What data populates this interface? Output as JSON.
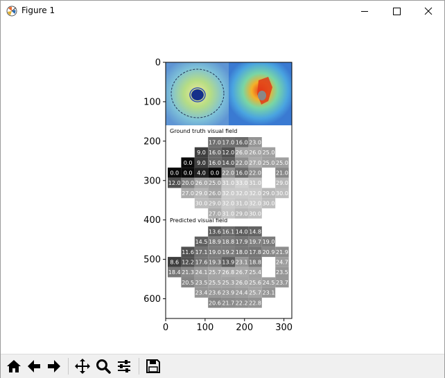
{
  "window": {
    "title": "Figure 1",
    "icon": "matplotlib-icon",
    "controls": [
      "minimize-icon",
      "maximize-icon",
      "close-icon"
    ]
  },
  "toolbar": {
    "buttons": [
      {
        "name": "home-button",
        "icon": "home-icon"
      },
      {
        "name": "back-button",
        "icon": "arrow-left-icon"
      },
      {
        "name": "forward-button",
        "icon": "arrow-right-icon"
      },
      {
        "name": "pan-button",
        "icon": "move-icon"
      },
      {
        "name": "zoom-button",
        "icon": "magnifier-icon"
      },
      {
        "name": "configure-subplots-button",
        "icon": "sliders-icon"
      },
      {
        "name": "save-button",
        "icon": "floppy-disk-icon"
      }
    ]
  },
  "figure": {
    "xlim": [
      0,
      320
    ],
    "ylim": [
      650,
      0
    ],
    "xticks": [
      "0",
      "100",
      "200",
      "300"
    ],
    "yticks": [
      "0",
      "100",
      "200",
      "300",
      "400",
      "500",
      "600"
    ],
    "xtick_values": [
      0,
      100,
      200,
      300
    ],
    "ytick_values": [
      0,
      100,
      200,
      300,
      400,
      500,
      600
    ],
    "title_gt": "Ground truth visual field",
    "title_pred": "Predicted visual field",
    "colors": {
      "spine": "#000000",
      "tick_text": "#000000",
      "cell_text": "#ffffff"
    }
  },
  "chart_data": [
    {
      "type": "heatmap",
      "title": "Ground truth visual field",
      "rows": [
        [
          null,
          null,
          null,
          17.0,
          17.0,
          16.0,
          23.0,
          null,
          null,
          null
        ],
        [
          null,
          null,
          9.0,
          16.0,
          12.0,
          26.0,
          26.0,
          25.0,
          null,
          null
        ],
        [
          null,
          0.0,
          9.0,
          16.0,
          14.0,
          22.0,
          27.0,
          25.0,
          25.0,
          null
        ],
        [
          0.0,
          0.0,
          4.0,
          0.0,
          22.0,
          16.0,
          22.0,
          null,
          21.0,
          null
        ],
        [
          12.0,
          20.0,
          26.0,
          25.0,
          31.0,
          33.0,
          31.0,
          null,
          29.0,
          null
        ],
        [
          null,
          27.0,
          29.0,
          26.0,
          32.0,
          32.0,
          32.0,
          29.0,
          30.0,
          null
        ],
        [
          null,
          null,
          30.0,
          29.0,
          32.0,
          31.0,
          32.0,
          30.0,
          null,
          null
        ],
        [
          null,
          null,
          null,
          27.0,
          31.0,
          29.0,
          30.0,
          null,
          null,
          null
        ]
      ]
    },
    {
      "type": "heatmap",
      "title": "Predicted visual field",
      "rows": [
        [
          null,
          null,
          null,
          13.6,
          16.1,
          14.0,
          14.8,
          null,
          null,
          null
        ],
        [
          null,
          null,
          14.5,
          18.9,
          18.8,
          17.9,
          19.7,
          19.0,
          null,
          null
        ],
        [
          null,
          11.6,
          17.1,
          19.0,
          19.2,
          18.0,
          17.8,
          20.9,
          21.9,
          null
        ],
        [
          8.6,
          12.2,
          17.6,
          19.3,
          13.9,
          23.1,
          18.8,
          null,
          24.7,
          null
        ],
        [
          18.4,
          21.3,
          24.1,
          25.7,
          26.8,
          26.7,
          25.4,
          null,
          23.5,
          null
        ],
        [
          null,
          20.5,
          23.5,
          25.5,
          25.3,
          26.0,
          25.6,
          24.5,
          23.7,
          null
        ],
        [
          null,
          null,
          23.4,
          23.6,
          23.9,
          24.4,
          25.7,
          23.1,
          null,
          null
        ],
        [
          null,
          null,
          null,
          20.6,
          21.7,
          22.2,
          22.8,
          null,
          null,
          null
        ]
      ]
    }
  ]
}
